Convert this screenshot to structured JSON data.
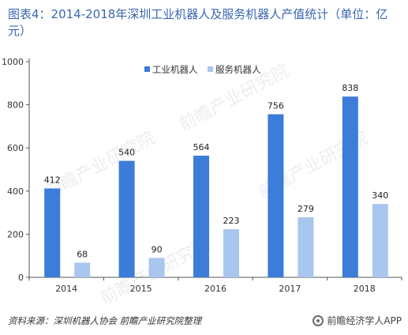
{
  "title": "图表4：2014-2018年深圳工业机器人及服务机器人产值统计（单位：亿元）",
  "source": "资料来源：深圳机器人协会  前瞻产业研究院整理",
  "brand": "前瞻经济学人APP",
  "watermark": "前瞻产业研究院",
  "colors": {
    "industrial": "#3b7dd8",
    "service": "#a9c6ee",
    "title": "#3a66b0"
  },
  "chart_data": {
    "type": "bar",
    "title": "图表4：2014-2018年深圳工业机器人及服务机器人产值统计（单位：亿元）",
    "categories": [
      "2014",
      "2015",
      "2016",
      "2017",
      "2018"
    ],
    "series": [
      {
        "name": "工业机器人",
        "values": [
          412,
          540,
          564,
          756,
          838
        ]
      },
      {
        "name": "服务机器人",
        "values": [
          68,
          90,
          223,
          279,
          340
        ]
      }
    ],
    "ylim": [
      0,
      1000
    ],
    "yticks": [
      0,
      200,
      400,
      600,
      800,
      1000
    ],
    "grid": false,
    "legend_position": "top-right",
    "xlabel": "",
    "ylabel": ""
  }
}
